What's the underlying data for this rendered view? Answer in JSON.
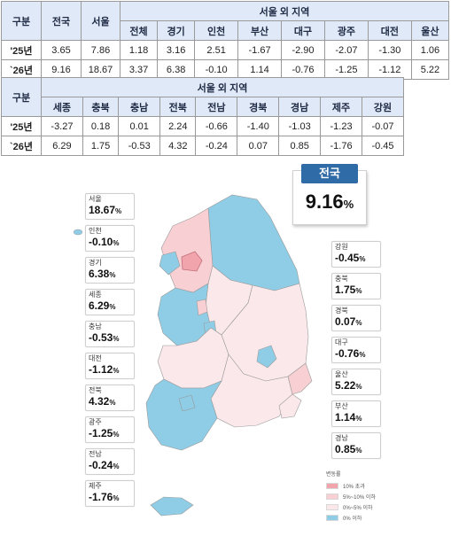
{
  "table_top": {
    "row_header": "구분",
    "col_national": "전국",
    "col_seoul": "서울",
    "group_header": "서울 외 지역",
    "sub_headers": [
      "전체",
      "경기",
      "인천",
      "부산",
      "대구",
      "광주",
      "대전",
      "울산"
    ],
    "rows": [
      {
        "label": "'25년",
        "national": "3.65",
        "seoul": "7.86",
        "values": [
          "1.18",
          "3.16",
          "2.51",
          "-1.67",
          "-2.90",
          "-2.07",
          "-1.30",
          "1.06"
        ]
      },
      {
        "label": "`26년",
        "national": "9.16",
        "seoul": "18.67",
        "values": [
          "3.37",
          "6.38",
          "-0.10",
          "1.14",
          "-0.76",
          "-1.25",
          "-1.12",
          "5.22"
        ]
      }
    ]
  },
  "table_bottom": {
    "row_header": "구분",
    "group_header": "서울 외 지역",
    "sub_headers": [
      "세종",
      "충북",
      "충남",
      "전북",
      "전남",
      "경북",
      "경남",
      "제주",
      "강원"
    ],
    "rows": [
      {
        "label": "'25년",
        "values": [
          "-3.27",
          "0.18",
          "0.01",
          "2.24",
          "-0.66",
          "-1.40",
          "-1.03",
          "-1.23",
          "-0.07"
        ]
      },
      {
        "label": "`26년",
        "values": [
          "6.29",
          "1.75",
          "-0.53",
          "4.32",
          "-0.24",
          "0.07",
          "0.85",
          "-1.76",
          "-0.45"
        ]
      }
    ]
  },
  "national": {
    "title": "전국",
    "value": "9.16",
    "unit": "%"
  },
  "regions": [
    {
      "name": "서울",
      "value": "18.67",
      "unit": "%"
    },
    {
      "name": "인천",
      "value": "-0.10",
      "unit": "%"
    },
    {
      "name": "경기",
      "value": "6.38",
      "unit": "%"
    },
    {
      "name": "세종",
      "value": "6.29",
      "unit": "%"
    },
    {
      "name": "충남",
      "value": "-0.53",
      "unit": "%"
    },
    {
      "name": "대전",
      "value": "-1.12",
      "unit": "%"
    },
    {
      "name": "전북",
      "value": "4.32",
      "unit": "%"
    },
    {
      "name": "광주",
      "value": "-1.25",
      "unit": "%"
    },
    {
      "name": "전남",
      "value": "-0.24",
      "unit": "%"
    },
    {
      "name": "제주",
      "value": "-1.76",
      "unit": "%"
    },
    {
      "name": "강원",
      "value": "-0.45",
      "unit": "%"
    },
    {
      "name": "충북",
      "value": "1.75",
      "unit": "%"
    },
    {
      "name": "경북",
      "value": "0.07",
      "unit": "%"
    },
    {
      "name": "대구",
      "value": "-0.76",
      "unit": "%"
    },
    {
      "name": "울산",
      "value": "5.22",
      "unit": "%"
    },
    {
      "name": "부산",
      "value": "1.14",
      "unit": "%"
    },
    {
      "name": "경남",
      "value": "0.85",
      "unit": "%"
    }
  ],
  "legend": {
    "title": "변동률",
    "items": [
      {
        "label": "10% 초과",
        "color": "#f2a4ad"
      },
      {
        "label": "5%~10% 이하",
        "color": "#f8cfd3"
      },
      {
        "label": "0%~5% 이하",
        "color": "#fbe8ea"
      },
      {
        "label": "0% 이하",
        "color": "#8fcde6"
      }
    ]
  },
  "colors": {
    "over10": "#f2a4ad",
    "five_to_ten": "#f8cfd3",
    "zero_to_five": "#fbe8ea",
    "below_zero": "#8fcde6",
    "header_bg": "#dfe9f7",
    "national_badge": "#2f6ba7"
  }
}
